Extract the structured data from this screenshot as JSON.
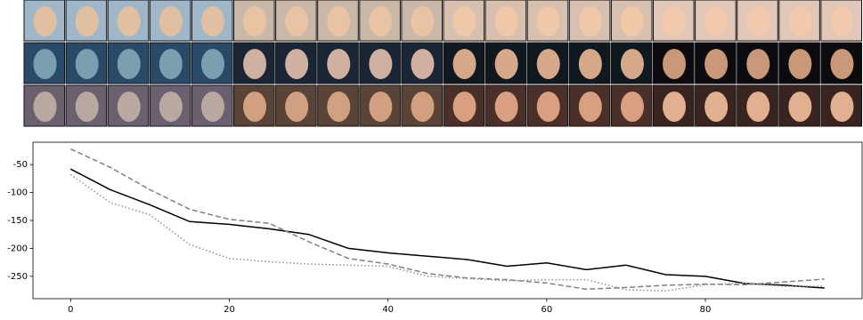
{
  "chart_data": {
    "type": "line",
    "x": [
      0,
      5,
      10,
      15,
      20,
      25,
      30,
      35,
      40,
      45,
      50,
      55,
      60,
      65,
      70,
      75,
      80,
      85,
      90,
      95
    ],
    "series": [
      {
        "color": "#000000",
        "dash": "solid",
        "values": [
          -58,
          -95,
          -122,
          -152,
          -157,
          -165,
          -175,
          -200,
          -208,
          -214,
          -220,
          -232,
          -226,
          -238,
          -230,
          -247,
          -250,
          -263,
          -266,
          -271
        ]
      },
      {
        "color": "#808080",
        "dash": "dashed",
        "values": [
          -22,
          -55,
          -95,
          -130,
          -148,
          -155,
          -188,
          -218,
          -228,
          -245,
          -253,
          -256,
          -262,
          -273,
          -270,
          -266,
          -264,
          -265,
          -260,
          -255
        ]
      },
      {
        "color": "#909090",
        "dash": "dotted",
        "values": [
          -68,
          -118,
          -140,
          -193,
          -218,
          -224,
          -228,
          -230,
          -232,
          -250,
          -254,
          -258,
          -256,
          -256,
          -274,
          -276,
          -265,
          -262,
          -268,
          -268
        ]
      }
    ],
    "xlim": [
      -4.75,
      99.75
    ],
    "xticks": [
      0,
      20,
      40,
      60,
      80
    ],
    "ylim": [
      -290,
      -10
    ],
    "yticks": [
      -50,
      -100,
      -150,
      -200,
      -250
    ]
  }
}
